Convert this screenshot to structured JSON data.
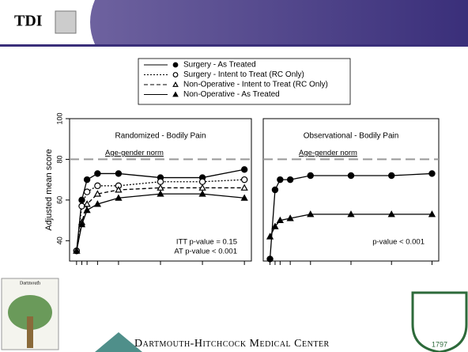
{
  "header": {
    "logo": "TDI"
  },
  "footer": {
    "institution": "Dartmouth-Hitchcock Medical Center",
    "seal_year": "1797",
    "tree_label": "Dartmouth"
  },
  "chart_data": [
    {
      "type": "line",
      "title": "Randomized - Bodily Pain",
      "y_label": "Adjusted mean score",
      "x": [
        0,
        1.5,
        3,
        6,
        12,
        24,
        36,
        48
      ],
      "xlim": [
        -2,
        50
      ],
      "ylim": [
        30,
        100
      ],
      "yticks": [
        40,
        60,
        80,
        100
      ],
      "reference": {
        "value": 80,
        "label": "Age-gender norm"
      },
      "annotations": [
        "ITT p-value = 0.15",
        "AT p-value < 0.001"
      ],
      "series": [
        {
          "name": "Surgery - As Treated",
          "color": "#000000",
          "dash": "solid",
          "marker": "circle",
          "filled": true,
          "values": [
            35,
            60,
            70,
            73,
            73,
            71,
            71,
            75
          ]
        },
        {
          "name": "Surgery - Intent to Treat (RC Only)",
          "color": "#000000",
          "dash": "dotted",
          "marker": "circle",
          "filled": false,
          "values": [
            35,
            57,
            64,
            67,
            67,
            69,
            69,
            70
          ]
        },
        {
          "name": "Non-Operative - Intent to Treat (RC Only)",
          "color": "#000000",
          "dash": "dashed",
          "marker": "triangle",
          "filled": false,
          "values": [
            35,
            49,
            58,
            63,
            65,
            66,
            66,
            66
          ]
        },
        {
          "name": "Non-Operative - As Treated",
          "color": "#000000",
          "dash": "solid",
          "marker": "triangle",
          "filled": true,
          "values": [
            35,
            48,
            55,
            58,
            61,
            63,
            63,
            61
          ]
        }
      ]
    },
    {
      "type": "line",
      "title": "Observational - Bodily Pain",
      "x": [
        0,
        1.5,
        3,
        6,
        12,
        24,
        36,
        48
      ],
      "xlim": [
        -2,
        50
      ],
      "ylim": [
        30,
        100
      ],
      "reference": {
        "value": 80,
        "label": "Age-gender norm"
      },
      "annotations": [
        "p-value < 0.001"
      ],
      "series": [
        {
          "color": "#000000",
          "dash": "solid",
          "marker": "circle",
          "filled": true,
          "values": [
            31,
            65,
            70,
            70,
            72,
            72,
            72,
            73
          ]
        },
        {
          "color": "#000000",
          "dash": "solid",
          "marker": "triangle",
          "filled": true,
          "values": [
            42,
            47,
            50,
            51,
            53,
            53,
            53,
            53
          ]
        }
      ]
    }
  ]
}
